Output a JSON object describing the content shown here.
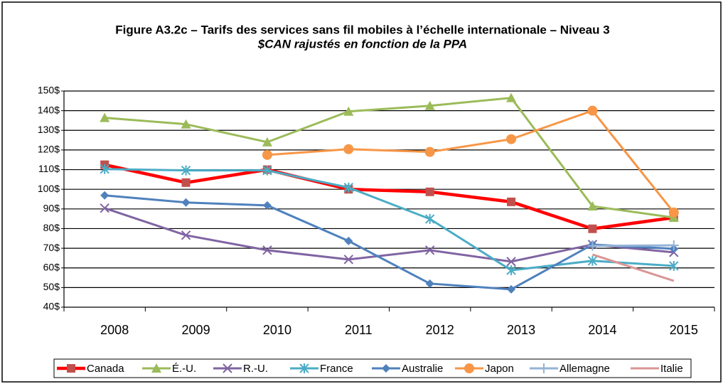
{
  "chart_data": {
    "type": "line",
    "title": "Figure A3.2c – Tarifs des services sans fil mobiles à l’échelle internationale – Niveau 3",
    "subtitle": "$CAN rajustés en fonction de la PPA",
    "categories": [
      "2008",
      "2009",
      "2010",
      "2011",
      "2012",
      "2013",
      "2014",
      "2015"
    ],
    "series": [
      {
        "name": "Canada",
        "color": "#ff0000",
        "marker_color": "#c0504d",
        "marker": "square",
        "values": [
          112.5,
          103.4,
          110,
          100,
          98.7,
          93.6,
          79.9,
          85.6
        ]
      },
      {
        "name": "É.-U.",
        "color": "#9bbb59",
        "marker": "triangle",
        "values": [
          136.4,
          133.1,
          124,
          139.6,
          142.5,
          146.5,
          91.4,
          85.6
        ]
      },
      {
        "name": "R.-U.",
        "color": "#8064a2",
        "marker": "x",
        "values": [
          90.4,
          76.6,
          69,
          64.3,
          69,
          63.2,
          71.9,
          67.9
        ]
      },
      {
        "name": "France",
        "color": "#4bacc6",
        "marker": "star",
        "values": [
          110.3,
          109.6,
          109.6,
          100.9,
          84.9,
          58.8,
          63.6,
          61
        ]
      },
      {
        "name": "Australie",
        "color": "#4f81bd",
        "marker": "diamond",
        "values": [
          96.9,
          93.3,
          91.8,
          73.7,
          52,
          49.1,
          71.9,
          69.7
        ]
      },
      {
        "name": "Japon",
        "color": "#f79646",
        "marker": "circle",
        "values": [
          null,
          null,
          117.5,
          120.4,
          119,
          125.5,
          140,
          88.2
        ]
      },
      {
        "name": "Allemagne",
        "color": "#95b3d7",
        "marker": "plus",
        "values": [
          null,
          null,
          null,
          null,
          null,
          null,
          71.2,
          71.5
        ]
      },
      {
        "name": "Italie",
        "color": "#d99694",
        "marker": "none",
        "values": [
          null,
          null,
          null,
          null,
          null,
          null,
          66.8,
          53.4
        ]
      }
    ],
    "ylim": [
      40,
      150
    ],
    "yticks": [
      {
        "value": 40,
        "label": "40$"
      },
      {
        "value": 50,
        "label": "50$"
      },
      {
        "value": 60,
        "label": "60$"
      },
      {
        "value": 70,
        "label": "70$"
      },
      {
        "value": 80,
        "label": "80$"
      },
      {
        "value": 90,
        "label": "90$"
      },
      {
        "value": 100,
        "label": "100$"
      },
      {
        "value": 110,
        "label": "110$"
      },
      {
        "value": 120,
        "label": "120$"
      },
      {
        "value": 130,
        "label": "130$"
      },
      {
        "value": 140,
        "label": "140$"
      },
      {
        "value": 150,
        "label": "150$"
      }
    ],
    "grid": true,
    "legend": "bottom"
  }
}
